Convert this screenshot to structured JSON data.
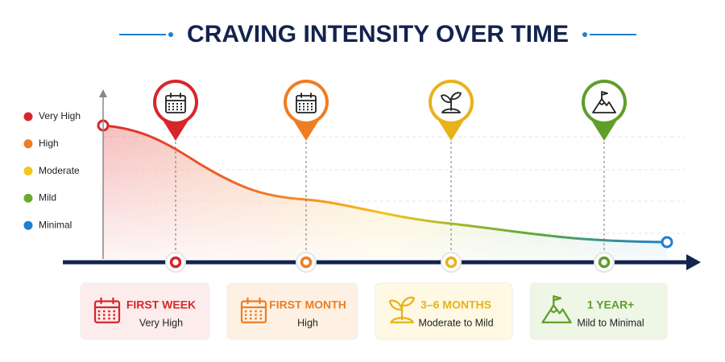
{
  "title": "CRAVING INTENSITY OVER TIME",
  "legend": [
    {
      "label": "Very High",
      "color": "#d7262b"
    },
    {
      "label": "High",
      "color": "#ef7d22"
    },
    {
      "label": "Moderate",
      "color": "#f5c518"
    },
    {
      "label": "Mild",
      "color": "#6aaa2e"
    },
    {
      "label": "Minimal",
      "color": "#1f7fd0"
    }
  ],
  "milestones": [
    {
      "title": "FIRST WEEK",
      "level": "Very High",
      "color": "#d7262b",
      "bg": "#fdecec"
    },
    {
      "title": "FIRST MONTH",
      "level": "High",
      "color": "#ef7d22",
      "bg": "#fef1e4"
    },
    {
      "title": "3–6 MONTHS",
      "level": "Moderate to Mild",
      "color": "#e8b21a",
      "bg": "#fff8e2"
    },
    {
      "title": "1 YEAR+",
      "level": "Mild to Minimal",
      "color": "#5f9e2a",
      "bg": "#eef6e6"
    }
  ]
}
